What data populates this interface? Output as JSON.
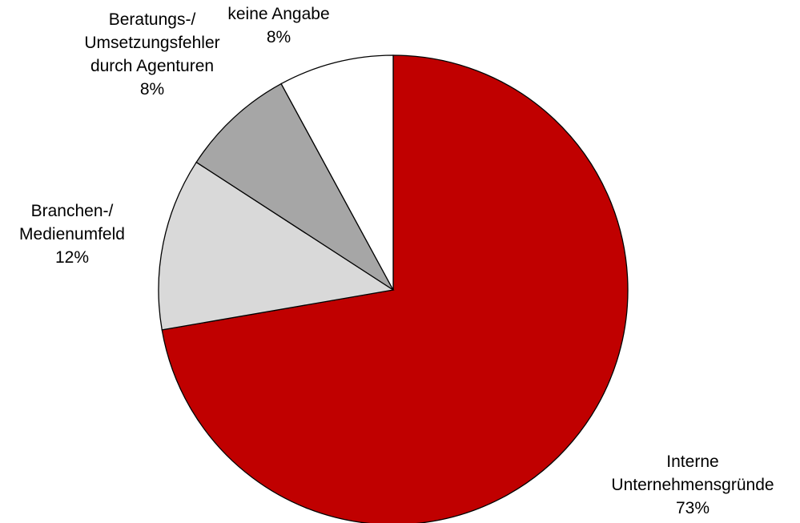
{
  "chart_data": {
    "type": "pie",
    "categories": [
      [
        "Interne",
        "Unternehmensgründe"
      ],
      [
        "Branchen-/",
        "Medienumfeld"
      ],
      [
        "Beratungs-/",
        "Umsetzungsfehler",
        "durch Agenturen"
      ],
      [
        "keine Angabe"
      ]
    ],
    "values": [
      73,
      12,
      8,
      8
    ],
    "value_labels": [
      "73%",
      "12%",
      "8%",
      "8%"
    ],
    "colors": [
      "#c00000",
      "#d9d9d9",
      "#a6a6a6",
      "#ffffff"
    ]
  }
}
